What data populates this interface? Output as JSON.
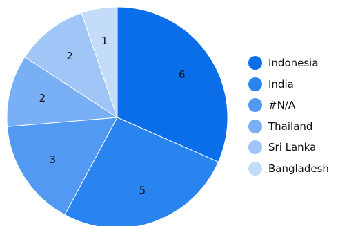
{
  "chart_data": {
    "type": "pie",
    "categories": [
      "Indonesia",
      "India",
      "#N/A",
      "Thailand",
      "Sri Lanka",
      "Bangladesh"
    ],
    "values": [
      6,
      5,
      3,
      2,
      2,
      1
    ],
    "colors": [
      "#0a6ee8",
      "#2a84f0",
      "#5199f3",
      "#79b0f5",
      "#9fc6f7",
      "#c3dcf9"
    ],
    "legend_position": "right",
    "start_angle_deg": 0,
    "direction": "clockwise"
  }
}
